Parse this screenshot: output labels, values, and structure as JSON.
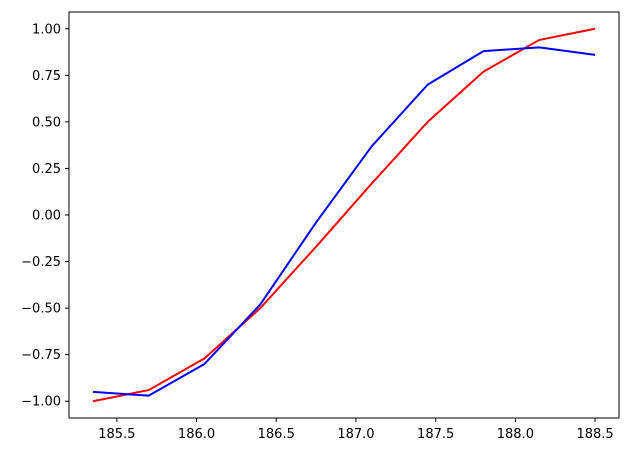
{
  "chart_data": {
    "type": "line",
    "title": "",
    "xlabel": "",
    "ylabel": "",
    "xlim": [
      185.2,
      188.65
    ],
    "ylim": [
      -1.09,
      1.09
    ],
    "xticks": [
      185.5,
      186.0,
      186.5,
      187.0,
      187.5,
      188.0,
      188.5
    ],
    "xtick_labels": [
      "185.5",
      "186.0",
      "186.5",
      "187.0",
      "187.5",
      "188.0",
      "188.5"
    ],
    "yticks": [
      1.0,
      0.75,
      0.5,
      0.25,
      0.0,
      -0.25,
      -0.5,
      -0.75,
      -1.0
    ],
    "ytick_labels": [
      "1.00",
      "0.75",
      "0.50",
      "0.25",
      "0.00",
      "−0.25",
      "−0.50",
      "−0.75",
      "−1.00"
    ],
    "grid": false,
    "legend": "none",
    "series": [
      {
        "color": "#ff0000",
        "x": [
          185.35,
          185.7,
          186.05,
          186.4,
          186.75,
          187.1,
          187.45,
          187.8,
          188.15,
          188.5
        ],
        "y": [
          -1.0,
          -0.94,
          -0.77,
          -0.5,
          -0.17,
          0.17,
          0.5,
          0.77,
          0.94,
          1.0
        ]
      },
      {
        "color": "#0000ff",
        "x": [
          185.35,
          185.7,
          186.05,
          186.4,
          186.75,
          187.1,
          187.45,
          187.8,
          188.15,
          188.5
        ],
        "y": [
          -0.95,
          -0.97,
          -0.8,
          -0.48,
          -0.04,
          0.37,
          0.7,
          0.88,
          0.9,
          0.86
        ]
      }
    ]
  }
}
